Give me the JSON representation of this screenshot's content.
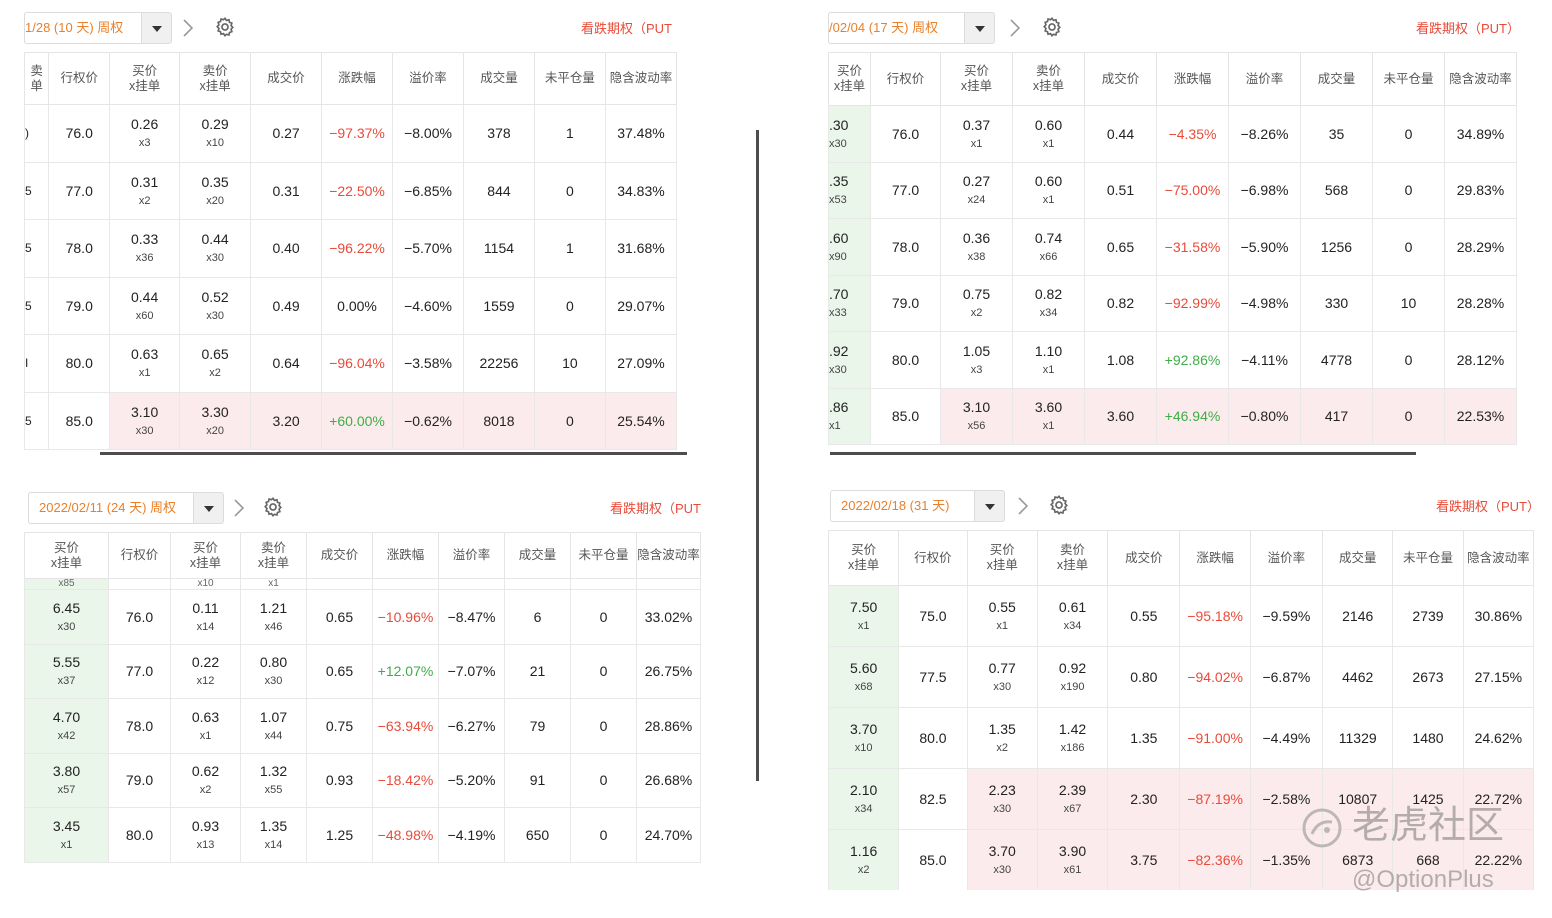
{
  "panels": [
    {
      "expiry": "1/28 (10 天) 周权",
      "put_label": "看跌期权（PUT",
      "headers": [
        "卖\n单",
        "行权价",
        "买价\nx挂单",
        "卖价\nx挂单",
        "成交价",
        "涨跌幅",
        "溢价率",
        "成交量",
        "未平仓量",
        "隐含波动率"
      ],
      "rows": [
        {
          "lead": ")",
          "strike": "76.0",
          "bid": "0.26",
          "bid_qty": "x3",
          "ask": "0.29",
          "ask_qty": "x10",
          "last": "0.27",
          "chg": "−97.37%",
          "premium": "−8.00%",
          "volume": "378",
          "oi": "1",
          "iv": "37.48%"
        },
        {
          "lead": "5",
          "strike": "77.0",
          "bid": "0.31",
          "bid_qty": "x2",
          "ask": "0.35",
          "ask_qty": "x20",
          "last": "0.31",
          "chg": "−22.50%",
          "premium": "−6.85%",
          "volume": "844",
          "oi": "0",
          "iv": "34.83%"
        },
        {
          "lead": "5",
          "strike": "78.0",
          "bid": "0.33",
          "bid_qty": "x36",
          "ask": "0.44",
          "ask_qty": "x30",
          "last": "0.40",
          "chg": "−96.22%",
          "premium": "−5.70%",
          "volume": "1154",
          "oi": "1",
          "iv": "31.68%"
        },
        {
          "lead": "5",
          "strike": "79.0",
          "bid": "0.44",
          "bid_qty": "x60",
          "ask": "0.52",
          "ask_qty": "x30",
          "last": "0.49",
          "chg": "0.00%",
          "premium": "−4.60%",
          "volume": "1559",
          "oi": "0",
          "iv": "29.07%"
        },
        {
          "lead": "I",
          "strike": "80.0",
          "bid": "0.63",
          "bid_qty": "x1",
          "ask": "0.65",
          "ask_qty": "x2",
          "last": "0.64",
          "chg": "−96.04%",
          "premium": "−3.58%",
          "volume": "22256",
          "oi": "10",
          "iv": "27.09%"
        },
        {
          "lead": "5",
          "strike": "85.0",
          "bid": "3.10",
          "bid_qty": "x30",
          "ask": "3.30",
          "ask_qty": "x20",
          "last": "3.20",
          "chg": "+60.00%",
          "premium": "−0.62%",
          "volume": "8018",
          "oi": "0",
          "iv": "25.54%"
        }
      ]
    },
    {
      "expiry": "/02/04 (17 天) 周权",
      "put_label": "看跌期权（PUT）",
      "headers": [
        "买价\nx挂单",
        "行权价",
        "买价\nx挂单",
        "卖价\nx挂单",
        "成交价",
        "涨跌幅",
        "溢价率",
        "成交量",
        "未平仓量",
        "隐含波动率"
      ],
      "rows": [
        {
          "lead": ".30",
          "lead_qty": "x30",
          "strike": "76.0",
          "bid": "0.37",
          "bid_qty": "x1",
          "ask": "0.60",
          "ask_qty": "x1",
          "last": "0.44",
          "chg": "−4.35%",
          "premium": "−8.26%",
          "volume": "35",
          "oi": "0",
          "iv": "34.89%"
        },
        {
          "lead": ".35",
          "lead_qty": "x53",
          "strike": "77.0",
          "bid": "0.27",
          "bid_qty": "x24",
          "ask": "0.60",
          "ask_qty": "x1",
          "last": "0.51",
          "chg": "−75.00%",
          "premium": "−6.98%",
          "volume": "568",
          "oi": "0",
          "iv": "29.83%"
        },
        {
          "lead": ".60",
          "lead_qty": "x90",
          "strike": "78.0",
          "bid": "0.36",
          "bid_qty": "x38",
          "ask": "0.74",
          "ask_qty": "x66",
          "last": "0.65",
          "chg": "−31.58%",
          "premium": "−5.90%",
          "volume": "1256",
          "oi": "0",
          "iv": "28.29%"
        },
        {
          "lead": ".70",
          "lead_qty": "x33",
          "strike": "79.0",
          "bid": "0.75",
          "bid_qty": "x2",
          "ask": "0.82",
          "ask_qty": "x34",
          "last": "0.82",
          "chg": "−92.99%",
          "premium": "−4.98%",
          "volume": "330",
          "oi": "10",
          "iv": "28.28%"
        },
        {
          "lead": ".92",
          "lead_qty": "x30",
          "strike": "80.0",
          "bid": "1.05",
          "bid_qty": "x3",
          "ask": "1.10",
          "ask_qty": "x1",
          "last": "1.08",
          "chg": "+92.86%",
          "premium": "−4.11%",
          "volume": "4778",
          "oi": "0",
          "iv": "28.12%"
        },
        {
          "lead": ".86",
          "lead_qty": "x1",
          "strike": "85.0",
          "bid": "3.10",
          "bid_qty": "x56",
          "ask": "3.60",
          "ask_qty": "x1",
          "last": "3.60",
          "chg": "+46.94%",
          "premium": "−0.80%",
          "volume": "417",
          "oi": "0",
          "iv": "22.53%"
        }
      ]
    },
    {
      "expiry": "2022/02/11 (24 天) 周权",
      "put_label": "看跌期权（PUT",
      "headers": [
        "买价\nx挂单",
        "行权价",
        "买价\nx挂单",
        "卖价\nx挂单",
        "成交价",
        "涨跌幅",
        "溢价率",
        "成交量",
        "未平仓量",
        "隐含波动率"
      ],
      "top_partial": [
        "x85",
        "x10",
        "x1"
      ],
      "rows": [
        {
          "lead": "6.45",
          "lead_qty": "x30",
          "strike": "76.0",
          "bid": "0.11",
          "bid_qty": "x14",
          "ask": "1.21",
          "ask_qty": "x46",
          "last": "0.65",
          "chg": "−10.96%",
          "premium": "−8.47%",
          "volume": "6",
          "oi": "0",
          "iv": "33.02%"
        },
        {
          "lead": "5.55",
          "lead_qty": "x37",
          "strike": "77.0",
          "bid": "0.22",
          "bid_qty": "x12",
          "ask": "0.80",
          "ask_qty": "x30",
          "last": "0.65",
          "chg": "+12.07%",
          "premium": "−7.07%",
          "volume": "21",
          "oi": "0",
          "iv": "26.75%"
        },
        {
          "lead": "4.70",
          "lead_qty": "x42",
          "strike": "78.0",
          "bid": "0.63",
          "bid_qty": "x1",
          "ask": "1.07",
          "ask_qty": "x44",
          "last": "0.75",
          "chg": "−63.94%",
          "premium": "−6.27%",
          "volume": "79",
          "oi": "0",
          "iv": "28.86%"
        },
        {
          "lead": "3.80",
          "lead_qty": "x57",
          "strike": "79.0",
          "bid": "0.62",
          "bid_qty": "x2",
          "ask": "1.32",
          "ask_qty": "x55",
          "last": "0.93",
          "chg": "−18.42%",
          "premium": "−5.20%",
          "volume": "91",
          "oi": "0",
          "iv": "26.68%"
        },
        {
          "lead": "3.45",
          "lead_qty": "x1",
          "strike": "80.0",
          "bid": "0.93",
          "bid_qty": "x13",
          "ask": "1.35",
          "ask_qty": "x14",
          "last": "1.25",
          "chg": "−48.98%",
          "premium": "−4.19%",
          "volume": "650",
          "oi": "0",
          "iv": "24.70%"
        }
      ]
    },
    {
      "expiry": "2022/02/18 (31 天)",
      "put_label": "看跌期权（PUT）",
      "headers": [
        "买价\nx挂单",
        "行权价",
        "买价\nx挂单",
        "卖价\nx挂单",
        "成交价",
        "涨跌幅",
        "溢价率",
        "成交量",
        "未平仓量",
        "隐含波动率"
      ],
      "rows": [
        {
          "lead": "7.50",
          "lead_qty": "x1",
          "strike": "75.0",
          "bid": "0.55",
          "bid_qty": "x1",
          "ask": "0.61",
          "ask_qty": "x34",
          "last": "0.55",
          "chg": "−95.18%",
          "premium": "−9.59%",
          "volume": "2146",
          "oi": "2739",
          "iv": "30.86%"
        },
        {
          "lead": "5.60",
          "lead_qty": "x68",
          "strike": "77.5",
          "bid": "0.77",
          "bid_qty": "x30",
          "ask": "0.92",
          "ask_qty": "x190",
          "last": "0.80",
          "chg": "−94.02%",
          "premium": "−6.87%",
          "volume": "4462",
          "oi": "2673",
          "iv": "27.15%"
        },
        {
          "lead": "3.70",
          "lead_qty": "x10",
          "strike": "80.0",
          "bid": "1.35",
          "bid_qty": "x2",
          "ask": "1.42",
          "ask_qty": "x186",
          "last": "1.35",
          "chg": "−91.00%",
          "premium": "−4.49%",
          "volume": "11329",
          "oi": "1480",
          "iv": "24.62%"
        },
        {
          "lead": "2.10",
          "lead_qty": "x34",
          "strike": "82.5",
          "bid": "2.23",
          "bid_qty": "x30",
          "ask": "2.39",
          "ask_qty": "x67",
          "last": "2.30",
          "chg": "−87.19%",
          "premium": "−2.58%",
          "volume": "10807",
          "oi": "1425",
          "iv": "22.72%"
        },
        {
          "lead": "1.16",
          "lead_qty": "x2",
          "strike": "85.0",
          "bid": "3.70",
          "bid_qty": "x30",
          "ask": "3.90",
          "ask_qty": "x61",
          "last": "3.75",
          "chg": "−82.36%",
          "premium": "−1.35%",
          "volume": "6873",
          "oi": "668",
          "iv": "22.22%"
        }
      ]
    }
  ],
  "watermark": {
    "brand": "老虎社区",
    "handle": "@OptionPlus"
  },
  "colors": {
    "accent_orange": "#e9802b",
    "down_red": "#e84b3a",
    "up_green": "#3dae47",
    "itm_pink": "#fcebec",
    "bid_green": "#eaf6ea"
  }
}
